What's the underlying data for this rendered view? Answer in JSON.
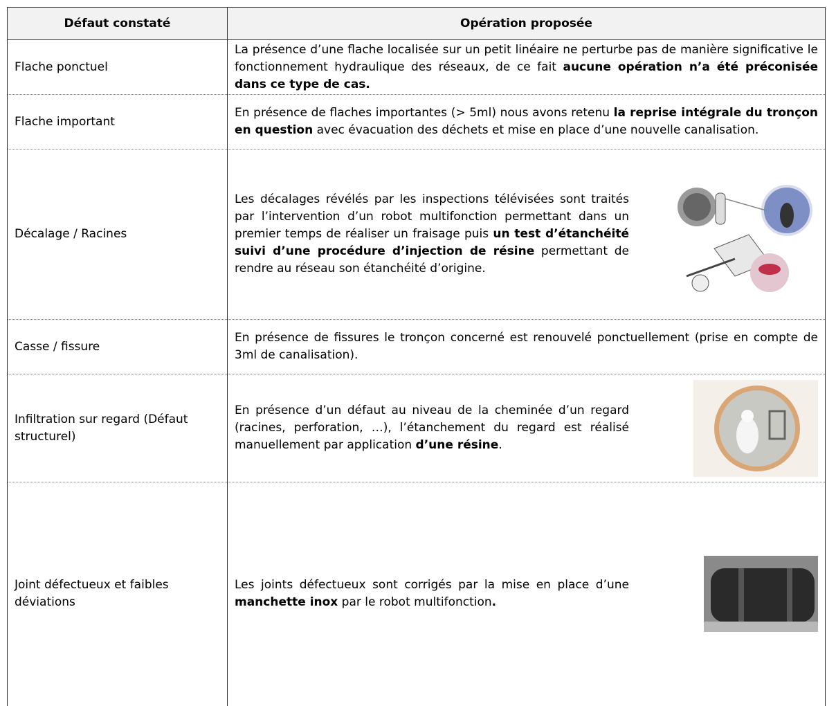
{
  "header": [
    "Défaut constaté",
    "Opération proposée"
  ],
  "rows": [
    {
      "defect": "Flache ponctuel",
      "operation": [
        "La présence d’une flache localisée sur un petit linéaire ne perturbe pas de manière significative le fonctionnement hydraulique des réseaux, de ce fait ",
        "aucune opération n’a été préconisée dans ce type de cas."
      ]
    },
    {
      "defect": "Flache important",
      "operation": [
        "En présence de flaches importantes (> 5ml) nous avons retenu ",
        "la reprise intégrale du tronçon en question",
        " avec évacuation des déchets et mise en place d’une nouvelle canalisation."
      ]
    },
    {
      "defect": "Décalage / Racines",
      "operation": [
        "Les décalages révélés par les inspections télévisées sont traités par l’intervention d’un robot multifonction permettant dans un premier temps de réaliser un fraisage puis ",
        "un test d’étanchéité suivi d’une procédure d’injection de résine",
        " permettant de rendre au réseau son étanchéité d’origine."
      ]
    },
    {
      "defect": "Casse / fissure",
      "operation": [
        "En présence de fissures le tronçon concerné est renouvelé ponctuellement (prise en compte de 3ml de canalisation)."
      ]
    },
    {
      "defect": "Infiltration sur regard (Défaut structurel)",
      "operation": [
        "En présence d’un défaut au niveau de la cheminée d’un regard (racines, perforation, …), l’étanchement du regard est réalisé manuellement par application ",
        "d’une résine",
        "."
      ]
    },
    {
      "defect": "Joint défectueux et faibles déviations",
      "operation": [
        "Les joints défectueux sont corrigés par la mise en place d’une ",
        "manchette inox",
        " par le robot multifonction",
        "."
      ]
    }
  ]
}
